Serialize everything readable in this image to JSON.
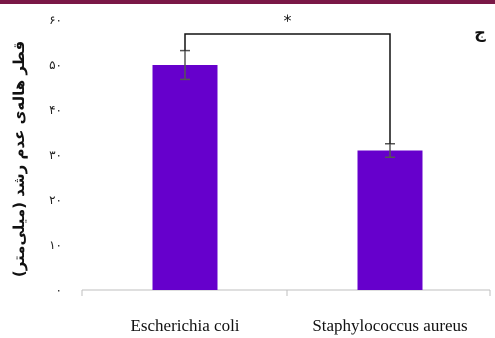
{
  "header": {
    "accent_color": "#7a1846"
  },
  "chart_data": {
    "type": "bar",
    "panel_label": "ج",
    "ylabel": "قطر هاله‌ی عدم رشد (میلی‌متر)",
    "categories": [
      "Escherichia coli",
      "Staphylococcus aureus"
    ],
    "values": [
      50,
      31
    ],
    "error": [
      3.2,
      1.5
    ],
    "ylim": [
      0,
      60
    ],
    "yticks": [
      0,
      10,
      20,
      30,
      40,
      50,
      60
    ],
    "ytick_labels": [
      "۰",
      "۱۰",
      "۲۰",
      "۳۰",
      "۴۰",
      "۵۰",
      "۶۰"
    ],
    "bar_color": "#6600cc",
    "significance": {
      "between": [
        0,
        1
      ],
      "label": "*"
    },
    "grid": false,
    "legend": "none"
  }
}
